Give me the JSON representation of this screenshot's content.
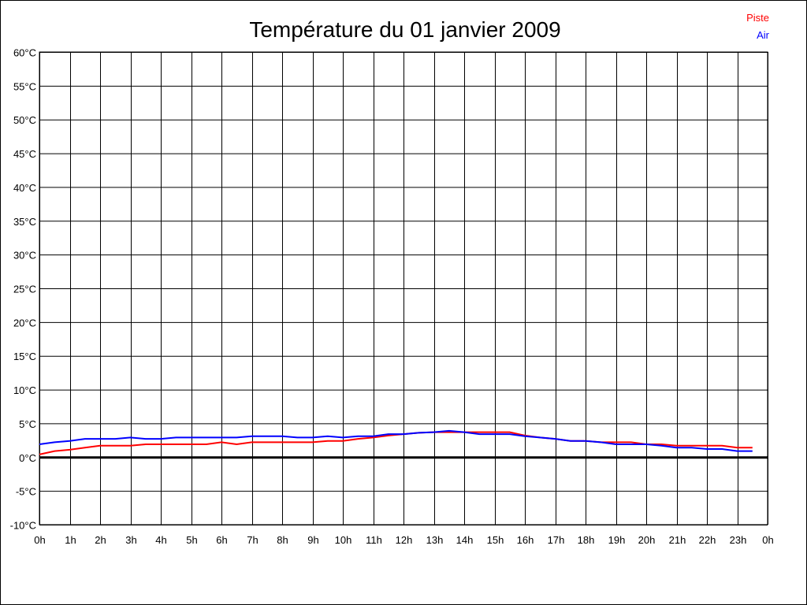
{
  "chart_data": {
    "type": "line",
    "title": "Température du 01 janvier 2009",
    "xlabel": "",
    "ylabel": "",
    "xlim": [
      0,
      24
    ],
    "ylim": [
      -10,
      60
    ],
    "grid": true,
    "legend_placement": "top-right",
    "x_tick_labels": [
      "0h",
      "1h",
      "2h",
      "3h",
      "4h",
      "5h",
      "6h",
      "7h",
      "8h",
      "9h",
      "10h",
      "11h",
      "12h",
      "13h",
      "14h",
      "15h",
      "16h",
      "17h",
      "18h",
      "19h",
      "20h",
      "21h",
      "22h",
      "23h",
      "0h"
    ],
    "y_ticks": [
      -10,
      -5,
      0,
      5,
      10,
      15,
      20,
      25,
      30,
      35,
      40,
      45,
      50,
      55,
      60
    ],
    "y_tick_unit": "°C",
    "x": [
      0,
      0.5,
      1,
      1.5,
      2,
      2.5,
      3,
      3.5,
      4,
      4.5,
      5,
      5.5,
      6,
      6.5,
      7,
      7.5,
      8,
      8.5,
      9,
      9.5,
      10,
      10.5,
      11,
      11.5,
      12,
      12.5,
      13,
      13.5,
      14,
      14.5,
      15,
      15.5,
      16,
      16.5,
      17,
      17.5,
      18,
      18.5,
      19,
      19.5,
      20,
      20.5,
      21,
      21.5,
      22,
      22.5,
      23,
      23.5
    ],
    "series": [
      {
        "name": "Piste",
        "color": "#ff0000",
        "values": [
          0.4,
          0.9,
          1.1,
          1.4,
          1.7,
          1.7,
          1.7,
          1.9,
          1.9,
          1.9,
          1.9,
          1.9,
          2.2,
          1.9,
          2.2,
          2.2,
          2.2,
          2.2,
          2.2,
          2.4,
          2.4,
          2.7,
          2.9,
          3.2,
          3.4,
          3.6,
          3.7,
          3.7,
          3.7,
          3.7,
          3.7,
          3.7,
          3.2,
          2.9,
          2.7,
          2.4,
          2.4,
          2.2,
          2.2,
          2.2,
          1.9,
          1.9,
          1.7,
          1.7,
          1.7,
          1.7,
          1.4,
          1.4
        ]
      },
      {
        "name": "Air",
        "color": "#0000ff",
        "values": [
          1.9,
          2.2,
          2.4,
          2.7,
          2.7,
          2.7,
          2.9,
          2.7,
          2.7,
          2.9,
          2.9,
          2.9,
          2.9,
          2.9,
          3.1,
          3.1,
          3.1,
          2.9,
          2.9,
          3.1,
          2.9,
          3.1,
          3.1,
          3.4,
          3.4,
          3.6,
          3.7,
          3.9,
          3.7,
          3.4,
          3.4,
          3.4,
          3.1,
          2.9,
          2.7,
          2.4,
          2.4,
          2.2,
          1.9,
          1.9,
          1.9,
          1.7,
          1.4,
          1.4,
          1.2,
          1.2,
          0.9,
          0.9
        ]
      }
    ]
  }
}
